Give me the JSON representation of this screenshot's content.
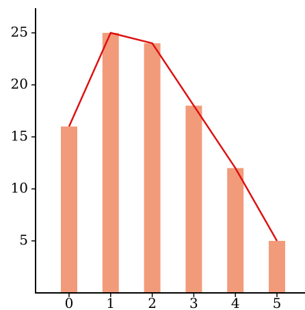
{
  "chart_data": {
    "type": "bar",
    "categories": [
      "0",
      "1",
      "2",
      "3",
      "4",
      "5"
    ],
    "x": [
      0,
      1,
      2,
      3,
      4,
      5
    ],
    "series": [
      {
        "type": "bar",
        "values": [
          16,
          25,
          24,
          18,
          12,
          5
        ]
      },
      {
        "type": "line",
        "values": [
          16,
          25,
          24,
          18,
          12,
          5
        ]
      }
    ],
    "y_ticks": [
      5,
      10,
      15,
      20,
      25
    ],
    "ylim": [
      0,
      27.9
    ],
    "title": "",
    "xlabel": "",
    "ylabel": "",
    "grid": false,
    "colors": {
      "bar": "#f29b7b",
      "line": "#dd1111",
      "axis": "#000000"
    }
  }
}
